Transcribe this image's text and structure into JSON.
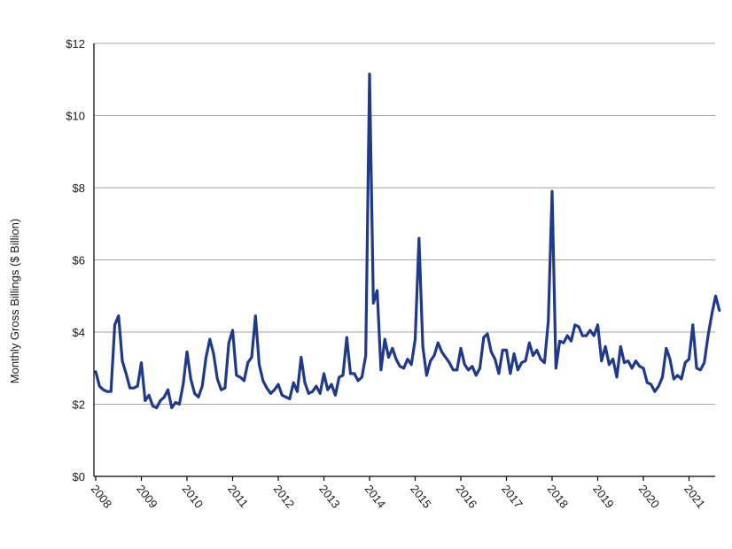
{
  "chart_data": {
    "type": "line",
    "title": "",
    "xlabel": "",
    "ylabel": "Monthly Gross Billings ($ Billion)",
    "ylim": [
      0,
      12
    ],
    "yticks": [
      0,
      2,
      4,
      6,
      8,
      10,
      12
    ],
    "ytick_labels": [
      "$0",
      "$2",
      "$4",
      "$6",
      "$8",
      "$10",
      "$12"
    ],
    "x_tick_labels": [
      "2008",
      "2009",
      "2010",
      "2011",
      "2012",
      "2013",
      "2014",
      "2015",
      "2016",
      "2017",
      "2018",
      "2019",
      "2020",
      "2021"
    ],
    "x_start_year": 2008,
    "grid": true,
    "legend": "none",
    "line_color": "#1f3a8a",
    "series": [
      {
        "values": [
          2.9,
          2.5,
          2.4,
          2.35,
          2.35,
          4.2,
          4.45,
          3.2,
          2.85,
          2.45,
          2.45,
          2.5,
          3.15,
          2.1,
          2.25,
          1.95,
          1.9,
          2.1,
          2.2,
          2.4,
          1.9,
          2.05,
          2.0,
          2.55,
          3.45,
          2.7,
          2.3,
          2.2,
          2.5,
          3.3,
          3.8,
          3.4,
          2.7,
          2.4,
          2.45,
          3.7,
          4.05,
          2.8,
          2.75,
          2.65,
          3.15,
          3.3,
          4.45,
          3.1,
          2.65,
          2.45,
          2.3,
          2.4,
          2.55,
          2.25,
          2.2,
          2.15,
          2.6,
          2.35,
          3.3,
          2.6,
          2.3,
          2.35,
          2.5,
          2.3,
          2.85,
          2.4,
          2.55,
          2.25,
          2.75,
          2.8,
          3.85,
          2.85,
          2.85,
          2.65,
          2.75,
          3.35,
          11.15,
          4.8,
          5.15,
          2.95,
          3.8,
          3.3,
          3.55,
          3.25,
          3.05,
          3.0,
          3.25,
          3.1,
          3.8,
          6.6,
          3.6,
          2.8,
          3.2,
          3.35,
          3.7,
          3.45,
          3.3,
          3.15,
          2.95,
          2.95,
          3.55,
          3.1,
          2.95,
          3.05,
          2.8,
          3.0,
          3.85,
          3.95,
          3.45,
          3.25,
          2.85,
          3.5,
          3.5,
          2.85,
          3.4,
          2.95,
          3.15,
          3.2,
          3.7,
          3.35,
          3.5,
          3.25,
          3.15,
          4.3,
          7.9,
          3.0,
          3.75,
          3.7,
          3.9,
          3.75,
          4.2,
          4.15,
          3.9,
          3.9,
          4.05,
          3.9,
          4.2,
          3.2,
          3.6,
          3.1,
          3.25,
          2.75,
          3.6,
          3.15,
          3.2,
          3.0,
          3.2,
          3.05,
          3.0,
          2.6,
          2.55,
          2.35,
          2.5,
          2.75,
          3.55,
          3.25,
          2.7,
          2.8,
          2.7,
          3.15,
          3.25,
          4.2,
          3.0,
          2.95,
          3.15,
          3.9,
          4.5,
          5.0,
          4.6
        ]
      }
    ]
  }
}
